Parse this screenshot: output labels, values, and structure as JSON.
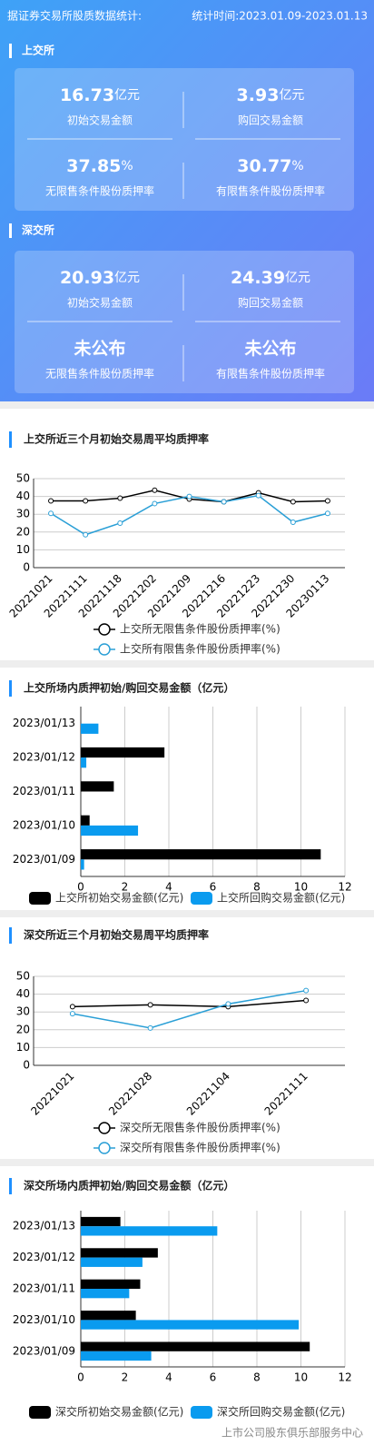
{
  "header": {
    "left": "据证券交易所股质数据统计:",
    "right": "统计时间:2023.01.09-2023.01.13"
  },
  "exchanges": [
    {
      "name": "上交所",
      "stats": [
        {
          "value": "16.73",
          "unit": "亿元",
          "label": "初始交易金额"
        },
        {
          "value": "3.93",
          "unit": "亿元",
          "label": "购回交易金额"
        },
        {
          "value": "37.85",
          "unit": "%",
          "label": "无限售条件股份质押率"
        },
        {
          "value": "30.77",
          "unit": "%",
          "label": "有限售条件股份质押率"
        }
      ]
    },
    {
      "name": "深交所",
      "stats": [
        {
          "value": "20.93",
          "unit": "亿元",
          "label": "初始交易金额"
        },
        {
          "value": "24.39",
          "unit": "亿元",
          "label": "购回交易金额"
        },
        {
          "value": "未公布",
          "label": "无限售条件股份质押率"
        },
        {
          "value": "未公布",
          "label": "有限售条件股份质押率"
        }
      ]
    }
  ],
  "chart_data": [
    {
      "type": "line",
      "title": "上交所近三个月初始交易周平均质押率",
      "categories": [
        "20221021",
        "20221111",
        "20221118",
        "20221202",
        "20221209",
        "20221216",
        "20221223",
        "20221230",
        "20230113"
      ],
      "series": [
        {
          "name": "上交所无限售条件股份质押率(%)",
          "color": "#000000",
          "values": [
            37.5,
            37.5,
            39,
            43.5,
            38.5,
            37,
            42,
            37,
            37.5
          ]
        },
        {
          "name": "上交所有限售条件股份质押率(%)",
          "color": "#2a9fd6",
          "values": [
            30.5,
            18.5,
            25,
            36,
            40,
            37,
            40.5,
            25.5,
            30.5
          ]
        }
      ],
      "ylim": [
        0,
        50
      ],
      "yticks": [
        0,
        10,
        20,
        30,
        40,
        50
      ],
      "grid": true
    },
    {
      "type": "hbar",
      "title": "上交所场内质押初始/购回交易金额（亿元）",
      "categories": [
        "2023/01/13",
        "2023/01/12",
        "2023/01/11",
        "2023/01/10",
        "2023/01/09"
      ],
      "series": [
        {
          "name": "上交所初始交易金额(亿元)",
          "color": "#000000",
          "values": [
            0,
            3.8,
            1.5,
            0.4,
            10.9
          ]
        },
        {
          "name": "上交所回购交易金额(亿元)",
          "color": "#0a9bef",
          "values": [
            0.8,
            0.25,
            0,
            2.6,
            0.15
          ]
        }
      ],
      "xlim": [
        0,
        12
      ],
      "xticks": [
        0,
        2,
        4,
        6,
        8,
        10,
        12
      ],
      "grid": true
    },
    {
      "type": "line",
      "title": "深交所近三个月初始交易周平均质押率",
      "categories": [
        "20221021",
        "20221028",
        "20221104",
        "20221111"
      ],
      "series": [
        {
          "name": "深交所无限售条件股份质押率(%)",
          "color": "#000000",
          "values": [
            33,
            34,
            33,
            36.5
          ]
        },
        {
          "name": "深交所有限售条件股份质押率(%)",
          "color": "#2a9fd6",
          "values": [
            29,
            21,
            34.5,
            42
          ]
        }
      ],
      "ylim": [
        0,
        50
      ],
      "yticks": [
        0,
        10,
        20,
        30,
        40,
        50
      ],
      "grid": true
    },
    {
      "type": "hbar",
      "title": "深交所场内质押初始/购回交易金额（亿元）",
      "categories": [
        "2023/01/13",
        "2023/01/12",
        "2023/01/11",
        "2023/01/10",
        "2023/01/09"
      ],
      "series": [
        {
          "name": "深交所初始交易金额(亿元)",
          "color": "#000000",
          "values": [
            1.8,
            3.5,
            2.7,
            2.5,
            10.4
          ]
        },
        {
          "name": "深交所回购交易金额(亿元)",
          "color": "#0a9bef",
          "values": [
            6.2,
            2.8,
            2.2,
            9.9,
            3.2
          ]
        }
      ],
      "xlim": [
        0,
        12
      ],
      "xticks": [
        0,
        2,
        4,
        6,
        8,
        10,
        12
      ],
      "grid": true
    }
  ],
  "footer": "上市公司股东俱乐部服务中心"
}
